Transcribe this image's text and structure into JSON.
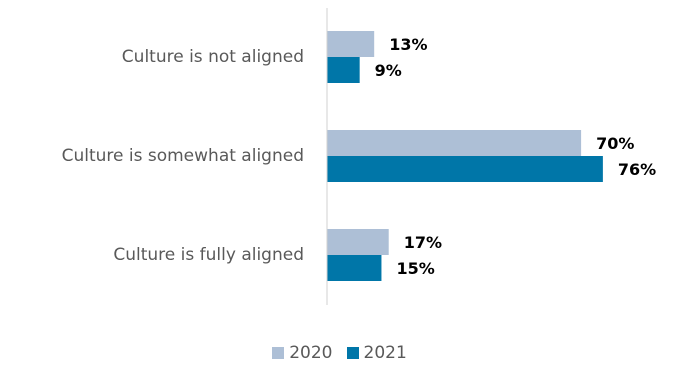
{
  "chart_data": {
    "type": "bar",
    "orientation": "horizontal",
    "categories": [
      "Culture is not aligned",
      "Culture is somewhat aligned",
      "Culture is fully aligned"
    ],
    "series": [
      {
        "name": "2020",
        "values": [
          13,
          70,
          17
        ],
        "labels": [
          "13%",
          "70%",
          "17%"
        ],
        "color": "#adbfd6"
      },
      {
        "name": "2021",
        "values": [
          9,
          76,
          15
        ],
        "labels": [
          "9%",
          "76%",
          "15%"
        ],
        "color": "#0076a8"
      }
    ],
    "title": "",
    "xlabel": "",
    "ylabel": "",
    "xlim": [
      0,
      100
    ],
    "grid": false,
    "legend_position": "bottom-center",
    "value_labels": true
  }
}
